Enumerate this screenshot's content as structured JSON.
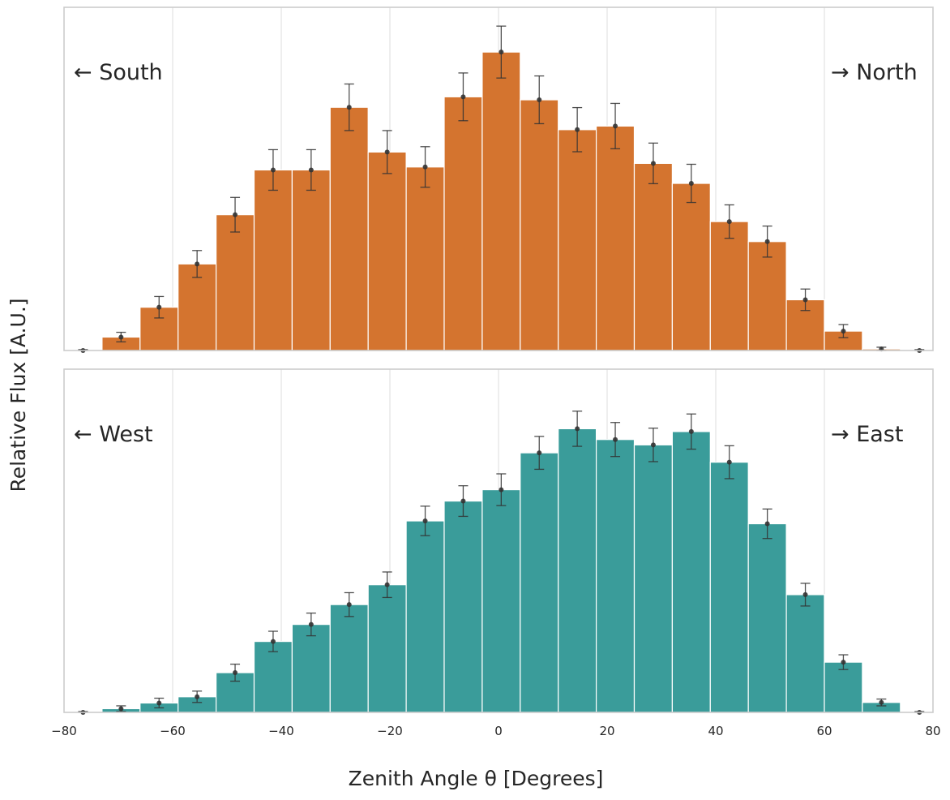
{
  "chart_data": [
    {
      "type": "bar",
      "panel": "top",
      "color": "#d4742f",
      "left_annotation": "← South",
      "right_annotation": "→ North",
      "bin_edges": [
        -80,
        -73,
        -66,
        -59,
        -52,
        -45,
        -38,
        -31,
        -24,
        -17,
        -10,
        -3,
        4,
        11,
        18,
        25,
        32,
        39,
        46,
        53,
        60,
        67,
        74,
        81
      ],
      "values": [
        0.0,
        0.045,
        0.145,
        0.29,
        0.455,
        0.605,
        0.605,
        0.815,
        0.665,
        0.615,
        0.85,
        1.0,
        0.84,
        0.74,
        0.752,
        0.627,
        0.56,
        0.432,
        0.365,
        0.17,
        0.065,
        0.005,
        0.0
      ],
      "errors": [
        0.003,
        0.016,
        0.036,
        0.045,
        0.058,
        0.068,
        0.068,
        0.078,
        0.072,
        0.068,
        0.08,
        0.087,
        0.08,
        0.074,
        0.076,
        0.068,
        0.064,
        0.056,
        0.052,
        0.036,
        0.022,
        0.006,
        0.003
      ],
      "ylim": [
        0,
        1.15
      ]
    },
    {
      "type": "bar",
      "panel": "bottom",
      "color": "#3a9c9a",
      "left_annotation": "←  West",
      "right_annotation": "→ East",
      "bin_edges": [
        -80,
        -73,
        -66,
        -59,
        -52,
        -45,
        -38,
        -31,
        -24,
        -17,
        -10,
        -3,
        4,
        11,
        18,
        25,
        32,
        39,
        46,
        53,
        60,
        67,
        74,
        81
      ],
      "values": [
        0.0,
        0.013,
        0.033,
        0.055,
        0.14,
        0.25,
        0.31,
        0.38,
        0.45,
        0.675,
        0.745,
        0.785,
        0.915,
        1.0,
        0.962,
        0.943,
        0.99,
        0.882,
        0.665,
        0.415,
        0.177,
        0.035,
        0.0
      ],
      "errors": [
        0.003,
        0.01,
        0.017,
        0.02,
        0.03,
        0.036,
        0.04,
        0.042,
        0.045,
        0.052,
        0.054,
        0.056,
        0.058,
        0.062,
        0.06,
        0.059,
        0.062,
        0.058,
        0.052,
        0.04,
        0.026,
        0.012,
        0.003
      ],
      "ylim": [
        0,
        1.21
      ]
    }
  ],
  "axes": {
    "xlabel": "Zenith Angle θ [Degrees]",
    "ylabel": "Relative Flux [A.U.]",
    "xlim": [
      -80,
      80
    ],
    "xticks": [
      -80,
      -60,
      -40,
      -20,
      0,
      20,
      40,
      60,
      80
    ],
    "xtick_labels": [
      "−80",
      "−60",
      "−40",
      "−20",
      "0",
      "20",
      "40",
      "60",
      "80"
    ],
    "grid": "vertical"
  }
}
